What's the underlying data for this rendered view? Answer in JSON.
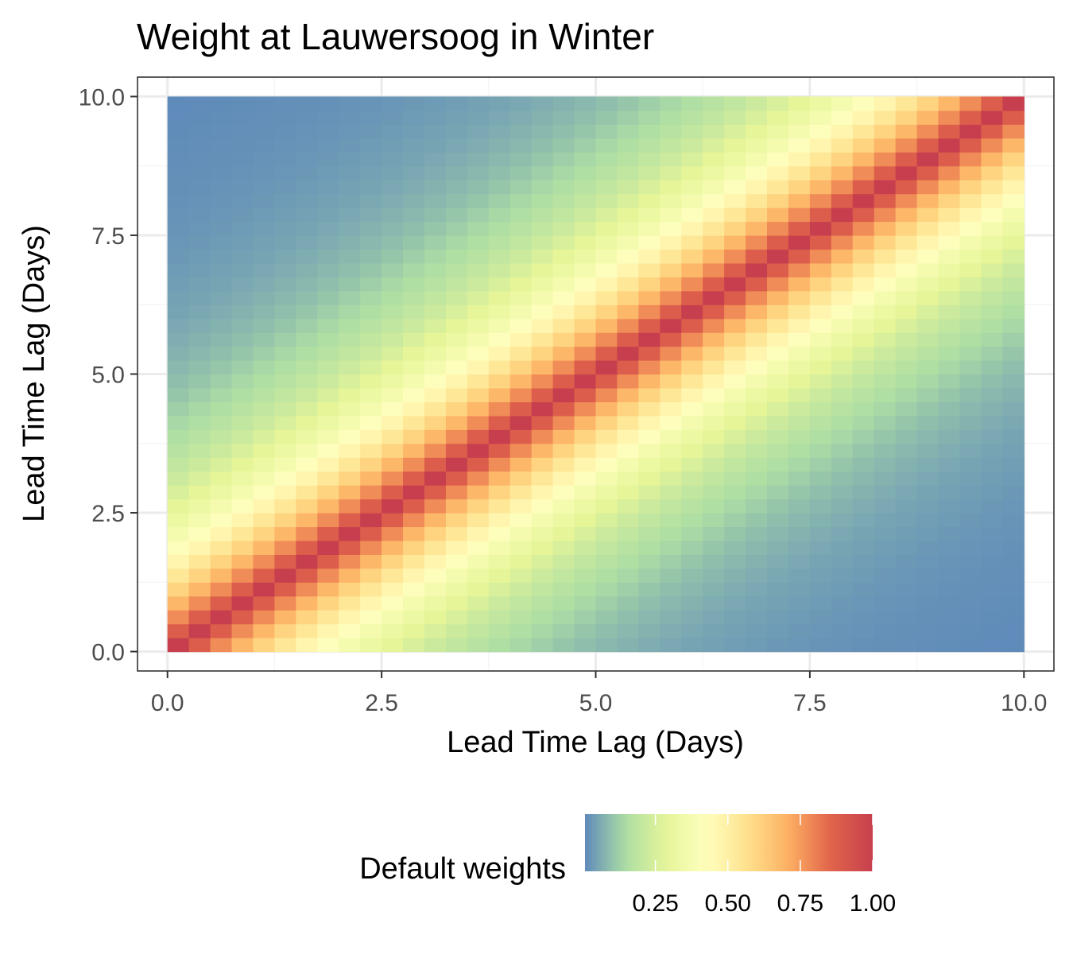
{
  "chart_data": {
    "type": "heatmap",
    "title": "Weight at Lauwersoog in Winter",
    "xlabel": "Lead Time Lag (Days)",
    "ylabel": "Lead Time Lag (Days)",
    "xlim": [
      -0.35,
      10.35
    ],
    "ylim": [
      -0.35,
      10.35
    ],
    "x_ticks": [
      0.0,
      2.5,
      5.0,
      7.5,
      10.0
    ],
    "y_ticks": [
      0.0,
      2.5,
      5.0,
      7.5,
      10.0
    ],
    "x_tick_labels": [
      "0.0",
      "2.5",
      "5.0",
      "7.5",
      "10.0"
    ],
    "y_tick_labels": [
      "0.0",
      "2.5",
      "5.0",
      "7.5",
      "10.0"
    ],
    "grid": true,
    "cell_range": [
      0.125,
      9.875
    ],
    "cell_step": 0.25,
    "weight_function": "exp(-|x - y| / 2)",
    "legend": {
      "title": "Default weights",
      "position": "bottom",
      "range": [
        0.0,
        1.0
      ],
      "ticks": [
        0.25,
        0.5,
        0.75,
        1.0
      ],
      "tick_labels": [
        "0.25",
        "0.50",
        "0.75",
        "1.00"
      ]
    },
    "palette": [
      "#5E4FA2",
      "#3288BD",
      "#66C2A5",
      "#ABDDA4",
      "#E6F598",
      "#FFFFBF",
      "#FEE08B",
      "#FDAE61",
      "#F46D43",
      "#D53E4F",
      "#9E0142"
    ],
    "palette_used": [
      "#5B86BB",
      "#ABDDA4",
      "#E6F598",
      "#FFFFBF",
      "#FEE08B",
      "#FDAE61",
      "#E0634A",
      "#C73F4E"
    ],
    "colors": {
      "panel_border": "#333333",
      "grid_major": "#EBEBEB",
      "grid_minor": "#F5F5F5",
      "tick_text": "#4D4D4D",
      "text": "#000000"
    }
  }
}
